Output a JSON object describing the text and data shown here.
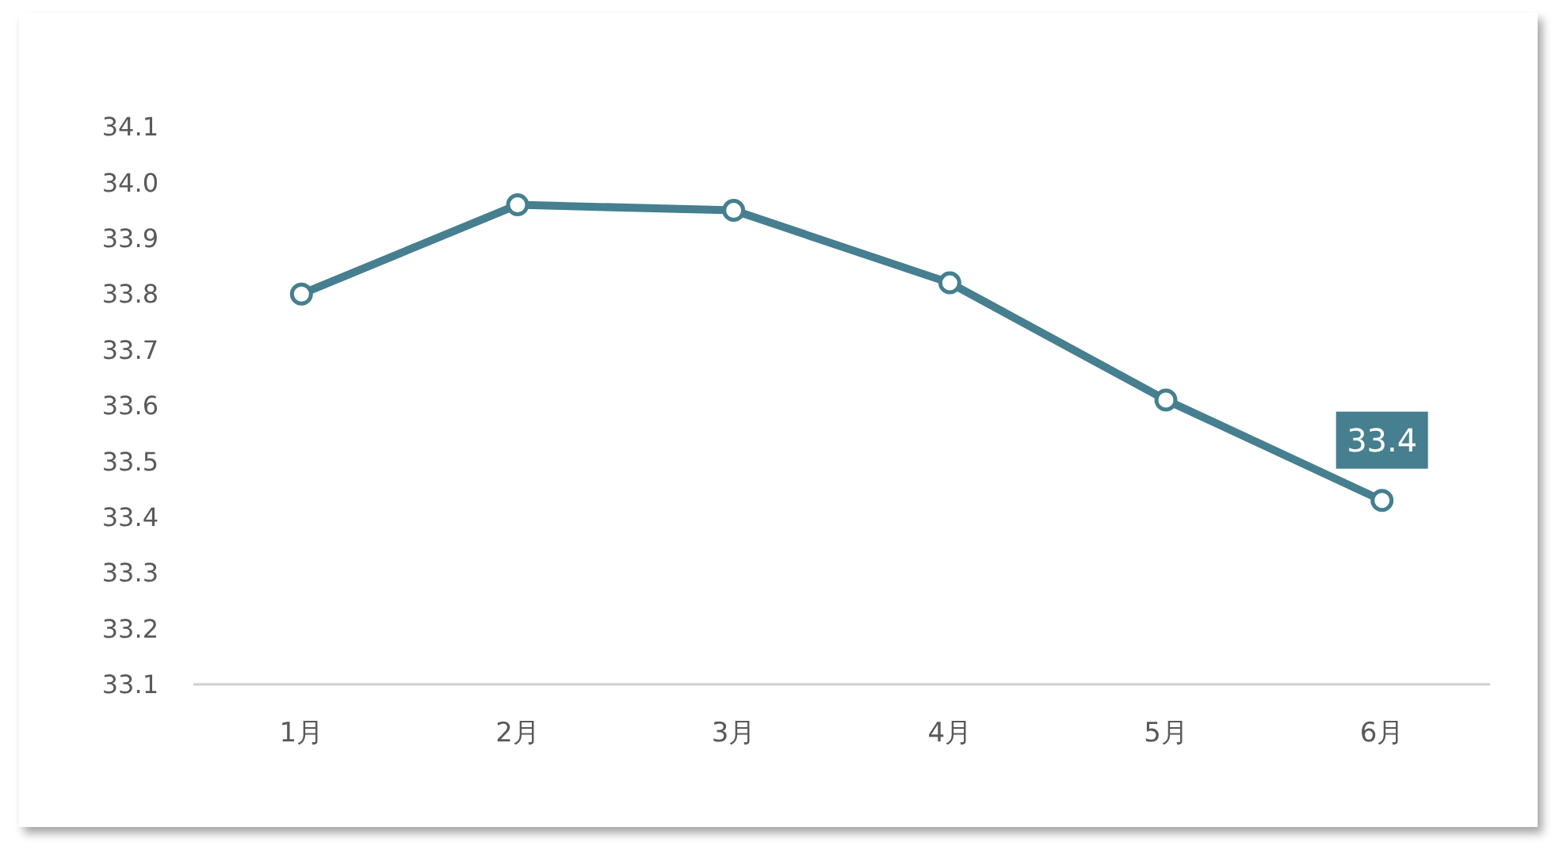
{
  "chart_data": {
    "type": "line",
    "categories": [
      "1月",
      "2月",
      "3月",
      "4月",
      "5月",
      "6月"
    ],
    "series": [
      {
        "color": "#467f8f",
        "values": [
          33.8,
          33.96,
          33.95,
          33.82,
          33.61,
          33.43
        ],
        "value_labels": [
          null,
          null,
          null,
          null,
          null,
          "33.4"
        ]
      }
    ],
    "ylim": [
      33.1,
      34.1
    ],
    "yticks": [
      {
        "value": 33.1,
        "label": "33.1"
      },
      {
        "value": 33.2,
        "label": "33.2"
      },
      {
        "value": 33.3,
        "label": "33.3"
      },
      {
        "value": 33.4,
        "label": "33.4"
      },
      {
        "value": 33.5,
        "label": "33.5"
      },
      {
        "value": 33.6,
        "label": "33.6"
      },
      {
        "value": 33.7,
        "label": "33.7"
      },
      {
        "value": 33.8,
        "label": "33.8"
      },
      {
        "value": 33.9,
        "label": "33.9"
      },
      {
        "value": 34.0,
        "label": "34.0"
      },
      {
        "value": 34.1,
        "label": "34.1"
      }
    ],
    "grid": false,
    "marker": "circle",
    "line_style": "solid"
  }
}
